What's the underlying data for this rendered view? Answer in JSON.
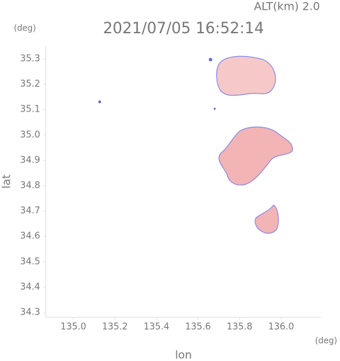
{
  "chart_data": {
    "type": "map",
    "title": "2021/07/05 16:52:14",
    "annotation": "ALT(km) 2.0",
    "x_label": "lon",
    "y_label": "lat",
    "x_unit": "(deg)",
    "y_unit": "(deg)",
    "xlim": [
      134.867,
      136.19
    ],
    "ylim": [
      34.281,
      35.349
    ],
    "xticks": [
      {
        "value": 135,
        "label": "135.0"
      },
      135.2,
      135.4,
      135.6,
      135.8,
      {
        "value": 136,
        "label": "136.0"
      }
    ],
    "yticks": [
      {
        "value": 34.3,
        "label": "34.3"
      },
      34.4,
      34.5,
      34.6,
      34.7,
      34.8,
      34.9,
      {
        "value": 35,
        "label": "35.0"
      },
      35.1,
      35.2,
      35.3
    ],
    "grid": false
  }
}
